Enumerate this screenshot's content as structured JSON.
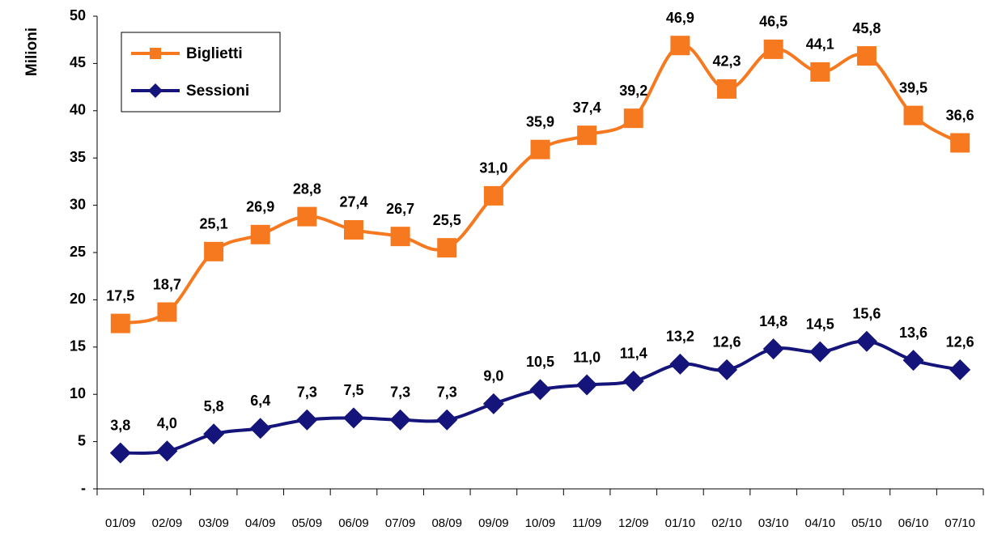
{
  "chart_data": {
    "type": "line",
    "y_label": "Milioni",
    "categories": [
      "01/09",
      "02/09",
      "03/09",
      "04/09",
      "05/09",
      "06/09",
      "07/09",
      "08/09",
      "09/09",
      "10/09",
      "11/09",
      "12/09",
      "01/10",
      "02/10",
      "03/10",
      "04/10",
      "05/10",
      "06/10",
      "07/10"
    ],
    "series": [
      {
        "name": "Biglietti",
        "color": "#f7791f",
        "marker": "square",
        "values": [
          17.5,
          18.7,
          25.1,
          26.9,
          28.8,
          27.4,
          26.7,
          25.5,
          31.0,
          35.9,
          37.4,
          39.2,
          46.9,
          42.3,
          46.5,
          44.1,
          45.8,
          39.5,
          36.6
        ],
        "value_labels": [
          "17,5",
          "18,7",
          "25,1",
          "26,9",
          "28,8",
          "27,4",
          "26,7",
          "25,5",
          "31,0",
          "35,9",
          "37,4",
          "39,2",
          "46,9",
          "42,3",
          "46,5",
          "44,1",
          "45,8",
          "39,5",
          "36,6"
        ]
      },
      {
        "name": "Sessioni",
        "color": "#14147a",
        "marker": "diamond",
        "values": [
          3.8,
          4.0,
          5.8,
          6.4,
          7.3,
          7.5,
          7.3,
          7.3,
          9.0,
          10.5,
          11.0,
          11.4,
          13.2,
          12.6,
          14.8,
          14.5,
          15.6,
          13.6,
          12.6
        ],
        "value_labels": [
          "3,8",
          "4,0",
          "5,8",
          "6,4",
          "7,3",
          "7,5",
          "7,3",
          "7,3",
          "9,0",
          "10,5",
          "11,0",
          "11,4",
          "13,2",
          "12,6",
          "14,8",
          "14,5",
          "15,6",
          "13,6",
          "12,6"
        ]
      }
    ],
    "ylim": [
      0,
      50
    ],
    "yticks": [
      {
        "value": 0,
        "label": "-"
      },
      5,
      10,
      15,
      20,
      25,
      30,
      35,
      40,
      45,
      50
    ],
    "grid": false,
    "legend": "upper left"
  }
}
